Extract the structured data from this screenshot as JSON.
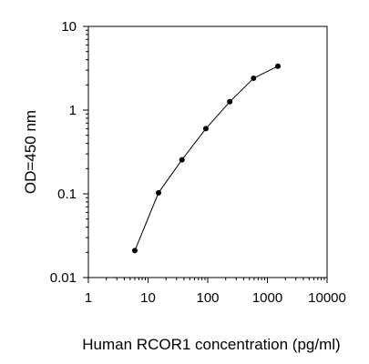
{
  "chart_data": {
    "type": "line",
    "title": "",
    "xlabel": "Human RCOR1 concentration (pg/ml)",
    "ylabel": "OD=450 nm",
    "x_scale": "log",
    "y_scale": "log",
    "xlim": [
      1,
      10000
    ],
    "ylim": [
      0.01,
      10
    ],
    "x_ticks": [
      "1",
      "10",
      "100",
      "1000",
      "10000"
    ],
    "y_ticks": [
      "0.01",
      "0.1",
      "1",
      "10"
    ],
    "grid": false,
    "legend": "none",
    "series": [
      {
        "x": [
          6,
          15,
          37,
          93,
          234,
          586,
          1500
        ],
        "y": [
          0.021,
          0.103,
          0.255,
          0.6,
          1.26,
          2.4,
          3.35
        ]
      }
    ],
    "colors": {
      "line": "#000000",
      "marker": "#000000",
      "axis": "#000000"
    }
  }
}
